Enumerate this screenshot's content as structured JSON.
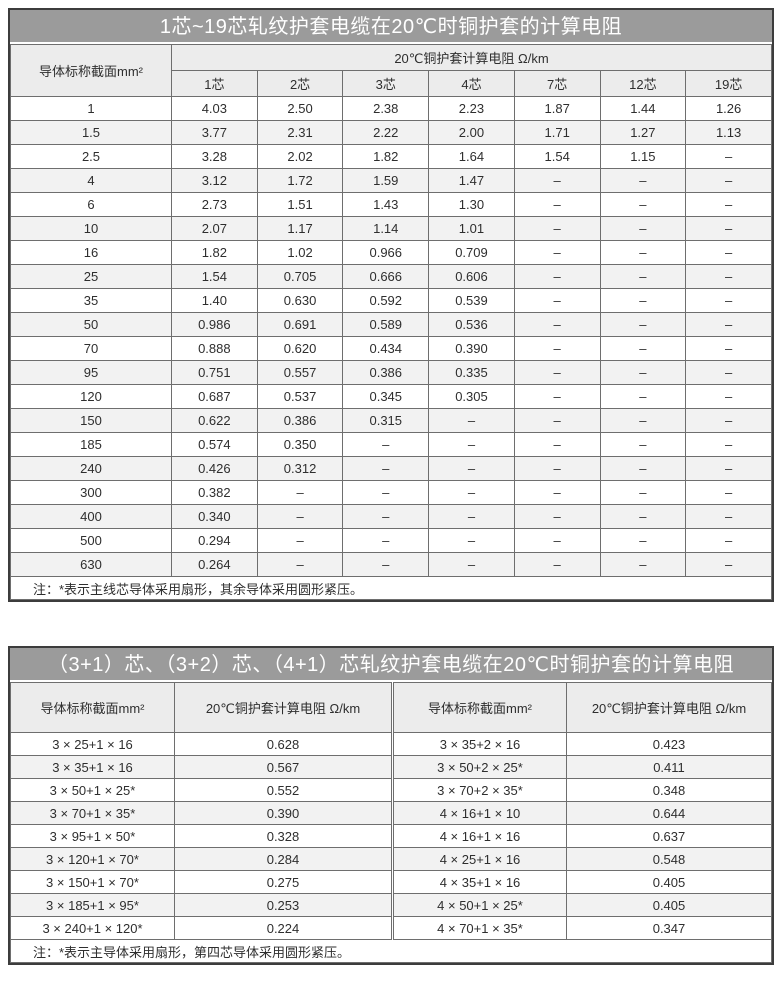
{
  "colors": {
    "title_bar": "#9b9b9b",
    "title_text": "#ffffff",
    "header_bg": "#ececec",
    "row_alt_bg": "#f2f2f2",
    "border": "#6e6e6e"
  },
  "table1": {
    "title": "1芯~19芯轧纹护套电缆在20℃时铜护套的计算电阻",
    "size_header": "导体标称截面mm²",
    "group_header": "20℃铜护套计算电阻 Ω/km",
    "core_headers": [
      "1芯",
      "2芯",
      "3芯",
      "4芯",
      "7芯",
      "12芯",
      "19芯"
    ],
    "rows": [
      {
        "size": "1",
        "values": [
          "4.03",
          "2.50",
          "2.38",
          "2.23",
          "1.87",
          "1.44",
          "1.26"
        ]
      },
      {
        "size": "1.5",
        "values": [
          "3.77",
          "2.31",
          "2.22",
          "2.00",
          "1.71",
          "1.27",
          "1.13"
        ]
      },
      {
        "size": "2.5",
        "values": [
          "3.28",
          "2.02",
          "1.82",
          "1.64",
          "1.54",
          "1.15",
          "–"
        ]
      },
      {
        "size": "4",
        "values": [
          "3.12",
          "1.72",
          "1.59",
          "1.47",
          "–",
          "–",
          "–"
        ]
      },
      {
        "size": "6",
        "values": [
          "2.73",
          "1.51",
          "1.43",
          "1.30",
          "–",
          "–",
          "–"
        ]
      },
      {
        "size": "10",
        "values": [
          "2.07",
          "1.17",
          "1.14",
          "1.01",
          "–",
          "–",
          "–"
        ]
      },
      {
        "size": "16",
        "values": [
          "1.82",
          "1.02",
          "0.966",
          "0.709",
          "–",
          "–",
          "–"
        ]
      },
      {
        "size": "25",
        "values": [
          "1.54",
          "0.705",
          "0.666",
          "0.606",
          "–",
          "–",
          "–"
        ]
      },
      {
        "size": "35",
        "values": [
          "1.40",
          "0.630",
          "0.592",
          "0.539",
          "–",
          "–",
          "–"
        ]
      },
      {
        "size": "50",
        "values": [
          "0.986",
          "0.691",
          "0.589",
          "0.536",
          "–",
          "–",
          "–"
        ]
      },
      {
        "size": "70",
        "values": [
          "0.888",
          "0.620",
          "0.434",
          "0.390",
          "–",
          "–",
          "–"
        ]
      },
      {
        "size": "95",
        "values": [
          "0.751",
          "0.557",
          "0.386",
          "0.335",
          "–",
          "–",
          "–"
        ]
      },
      {
        "size": "120",
        "values": [
          "0.687",
          "0.537",
          "0.345",
          "0.305",
          "–",
          "–",
          "–"
        ]
      },
      {
        "size": "150",
        "values": [
          "0.622",
          "0.386",
          "0.315",
          "–",
          "–",
          "–",
          "–"
        ]
      },
      {
        "size": "185",
        "values": [
          "0.574",
          "0.350",
          "–",
          "–",
          "–",
          "–",
          "–"
        ]
      },
      {
        "size": "240",
        "values": [
          "0.426",
          "0.312",
          "–",
          "–",
          "–",
          "–",
          "–"
        ]
      },
      {
        "size": "300",
        "values": [
          "0.382",
          "–",
          "–",
          "–",
          "–",
          "–",
          "–"
        ]
      },
      {
        "size": "400",
        "values": [
          "0.340",
          "–",
          "–",
          "–",
          "–",
          "–",
          "–"
        ]
      },
      {
        "size": "500",
        "values": [
          "0.294",
          "–",
          "–",
          "–",
          "–",
          "–",
          "–"
        ]
      },
      {
        "size": "630",
        "values": [
          "0.264",
          "–",
          "–",
          "–",
          "–",
          "–",
          "–"
        ]
      }
    ],
    "note": "注：*表示主线芯导体采用扇形，其余导体采用圆形紧压。"
  },
  "table2": {
    "title": "（3+1）芯、（3+2）芯、（4+1）芯轧纹护套电缆在20℃时铜护套的计算电阻",
    "size_header": "导体标称截面mm²",
    "res_header": "20℃铜护套计算电阻 Ω/km",
    "left_rows": [
      {
        "spec": "3 × 25+1 × 16",
        "value": "0.628"
      },
      {
        "spec": "3 × 35+1 × 16",
        "value": "0.567"
      },
      {
        "spec": "3 × 50+1 × 25*",
        "value": "0.552"
      },
      {
        "spec": "3 × 70+1 × 35*",
        "value": "0.390"
      },
      {
        "spec": "3 × 95+1 × 50*",
        "value": "0.328"
      },
      {
        "spec": "3 × 120+1 × 70*",
        "value": "0.284"
      },
      {
        "spec": "3 × 150+1 × 70*",
        "value": "0.275"
      },
      {
        "spec": "3 × 185+1 × 95*",
        "value": "0.253"
      },
      {
        "spec": "3 × 240+1 × 120*",
        "value": "0.224"
      }
    ],
    "right_rows": [
      {
        "spec": "3 × 35+2 × 16",
        "value": "0.423"
      },
      {
        "spec": "3 × 50+2 × 25*",
        "value": "0.411"
      },
      {
        "spec": "3 × 70+2 × 35*",
        "value": "0.348"
      },
      {
        "spec": "4 × 16+1 × 10",
        "value": "0.644"
      },
      {
        "spec": "4 × 16+1 × 16",
        "value": "0.637"
      },
      {
        "spec": "4 × 25+1 × 16",
        "value": "0.548"
      },
      {
        "spec": "4 × 35+1 × 16",
        "value": "0.405"
      },
      {
        "spec": "4 × 50+1 × 25*",
        "value": "0.405"
      },
      {
        "spec": "4 × 70+1 × 35*",
        "value": "0.347"
      }
    ],
    "note": "注：*表示主导体采用扇形，第四芯导体采用圆形紧压。"
  }
}
